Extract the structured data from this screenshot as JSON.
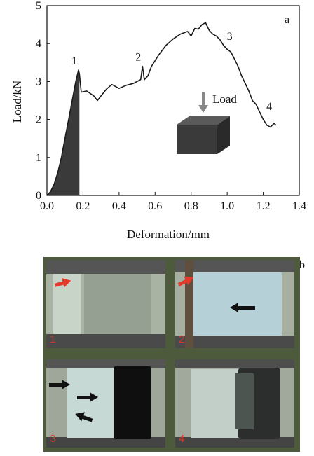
{
  "panel_labels": {
    "a": "a",
    "b": "b"
  },
  "chart_data": {
    "type": "line",
    "title": "",
    "xlabel": "Deformation/mm",
    "ylabel": "Load/kN",
    "xlim": [
      0.0,
      1.4
    ],
    "ylim": [
      0,
      5
    ],
    "xticks": [
      0.0,
      0.2,
      0.4,
      0.6,
      0.8,
      1.0,
      1.2,
      1.4
    ],
    "xtick_labels": [
      "0.0",
      "0.2",
      "0.4",
      "0.6",
      "0.8",
      "1.0",
      "1.2",
      "1.4"
    ],
    "yticks": [
      0,
      1,
      2,
      3,
      4,
      5
    ],
    "ytick_labels": [
      "0",
      "1",
      "2",
      "3",
      "4",
      "5"
    ],
    "grid": false,
    "series": [
      {
        "x": [
          0.0,
          0.02,
          0.04,
          0.06,
          0.08,
          0.1,
          0.12,
          0.14,
          0.16,
          0.175,
          0.18,
          0.19,
          0.22,
          0.26,
          0.28,
          0.3,
          0.33,
          0.36,
          0.4,
          0.44,
          0.48,
          0.52,
          0.53,
          0.54,
          0.56,
          0.58,
          0.62,
          0.66,
          0.7,
          0.74,
          0.78,
          0.8,
          0.82,
          0.84,
          0.86,
          0.88,
          0.9,
          0.92,
          0.94,
          0.96,
          0.98,
          1.0,
          1.02,
          1.04,
          1.06,
          1.08,
          1.1,
          1.12,
          1.14,
          1.16,
          1.18,
          1.2,
          1.22,
          1.24,
          1.26,
          1.27
        ],
        "y": [
          0.0,
          0.1,
          0.3,
          0.6,
          1.0,
          1.5,
          2.0,
          2.5,
          3.0,
          3.3,
          3.2,
          2.72,
          2.75,
          2.62,
          2.5,
          2.62,
          2.8,
          2.92,
          2.82,
          2.9,
          2.95,
          3.05,
          3.4,
          3.05,
          3.15,
          3.4,
          3.7,
          3.95,
          4.12,
          4.25,
          4.32,
          4.2,
          4.4,
          4.38,
          4.5,
          4.55,
          4.35,
          4.25,
          4.2,
          4.1,
          3.95,
          3.85,
          3.78,
          3.6,
          3.4,
          3.15,
          2.95,
          2.75,
          2.5,
          2.4,
          2.2,
          2.0,
          1.85,
          1.8,
          1.9,
          1.85
        ]
      }
    ],
    "filled_region": {
      "x_start": 0.0,
      "x_end": 0.18
    },
    "point_labels": [
      {
        "text": "1",
        "x": 0.175,
        "y": 3.3
      },
      {
        "text": "2",
        "x": 0.53,
        "y": 3.4
      },
      {
        "text": "3",
        "x": 0.99,
        "y": 3.95
      },
      {
        "text": "4",
        "x": 1.21,
        "y": 2.1
      }
    ],
    "annotation": {
      "text": "Load"
    },
    "colors": {
      "line": "#1a1a1a",
      "fill": "#3a3a3a",
      "block": "#3a3a3a"
    }
  },
  "photo_panels": [
    {
      "label": "1"
    },
    {
      "label": "2"
    },
    {
      "label": "3"
    },
    {
      "label": "4"
    }
  ]
}
